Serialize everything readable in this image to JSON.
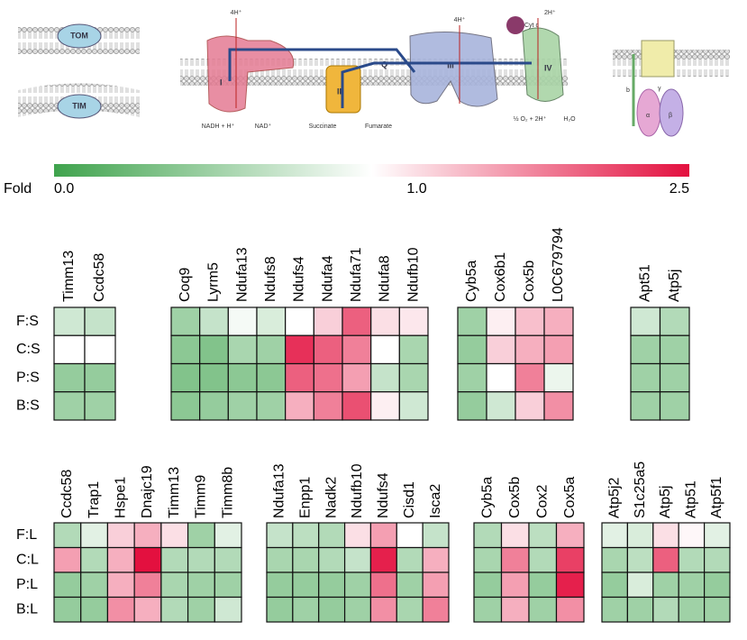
{
  "diagram": {
    "labels": [
      "TOM",
      "TIM",
      "I",
      "II",
      "Q",
      "III",
      "IV",
      "Cyt c",
      "NADH + H⁺",
      "NAD⁺",
      "Succinate",
      "Fumarate",
      "4H⁺",
      "4H⁺",
      "2H⁺",
      "½ O₂ + 2H⁺",
      "H₂O",
      "b",
      "α",
      "β",
      "γ"
    ]
  },
  "colorbar": {
    "label": "Fold",
    "ticks": [
      {
        "value": 0,
        "label": "0.0"
      },
      {
        "value": 1,
        "label": "1.0"
      },
      {
        "value": 2.5,
        "label": "2.5"
      }
    ],
    "colors": [
      "#3fa34d",
      "#ffffff",
      "#e3103f"
    ]
  },
  "chart_data": [
    {
      "type": "heatmap",
      "rows": [
        "F:S",
        "C:S",
        "P:S",
        "B:S"
      ],
      "groups": [
        {
          "columns": [
            "Timm13",
            "Ccdc58"
          ],
          "values": [
            [
              0.75,
              0.7
            ],
            [
              1.0,
              1.0
            ],
            [
              0.45,
              0.45
            ],
            [
              0.5,
              0.5
            ]
          ]
        },
        {
          "columns": [
            "Coq9",
            "Lyrm5",
            "Ndufa13",
            "Ndufs8",
            "Ndufs4",
            "Ndufa4",
            "Ndufa71",
            "Ndufa8",
            "Ndufb10"
          ],
          "values": [
            [
              0.5,
              0.7,
              0.95,
              0.8,
              1.0,
              1.3,
              2.0,
              1.2,
              1.15
            ],
            [
              0.4,
              0.35,
              0.55,
              0.5,
              2.3,
              2.0,
              1.8,
              1.0,
              0.55
            ],
            [
              0.35,
              0.35,
              0.4,
              0.4,
              2.0,
              1.9,
              1.6,
              0.7,
              0.55
            ],
            [
              0.4,
              0.45,
              0.5,
              0.5,
              1.5,
              1.8,
              2.1,
              1.1,
              0.75
            ]
          ]
        },
        {
          "columns": [
            "Cyb5a",
            "Cox6b1",
            "Cox5b",
            "L0C679794"
          ],
          "values": [
            [
              0.5,
              1.1,
              1.4,
              1.5
            ],
            [
              0.45,
              1.3,
              1.5,
              1.6
            ],
            [
              0.5,
              1.0,
              1.8,
              0.9
            ],
            [
              0.45,
              0.75,
              1.3,
              1.7
            ]
          ]
        },
        {
          "columns": [
            "Apt51",
            "Atp5j"
          ],
          "values": [
            [
              0.75,
              0.6
            ],
            [
              0.5,
              0.5
            ],
            [
              0.5,
              0.5
            ],
            [
              0.5,
              0.5
            ]
          ]
        }
      ]
    },
    {
      "type": "heatmap",
      "rows": [
        "F:L",
        "C:L",
        "P:L",
        "B:L"
      ],
      "groups": [
        {
          "columns": [
            "Ccdc58",
            "Trap1",
            "Hspe1",
            "Dnajc19",
            "Timm13",
            "Timm9",
            "Timm8b"
          ],
          "values": [
            [
              0.6,
              0.85,
              1.3,
              1.5,
              1.2,
              0.5,
              0.85
            ],
            [
              1.6,
              0.6,
              1.5,
              2.5,
              0.6,
              0.6,
              0.6
            ],
            [
              0.45,
              0.5,
              1.5,
              1.8,
              0.55,
              0.5,
              0.5
            ],
            [
              0.45,
              0.45,
              1.7,
              1.5,
              0.6,
              0.5,
              0.75
            ]
          ]
        },
        {
          "columns": [
            "Ndufa13",
            "Enpp1",
            "Nadk2",
            "Ndufb10",
            "Ndufs4",
            "Cisd1",
            "Isca2"
          ],
          "values": [
            [
              0.7,
              0.65,
              0.6,
              1.2,
              1.6,
              1.0,
              0.7
            ],
            [
              0.55,
              0.55,
              0.6,
              0.7,
              2.4,
              0.6,
              1.5
            ],
            [
              0.45,
              0.45,
              0.45,
              0.5,
              1.9,
              0.5,
              1.6
            ],
            [
              0.45,
              0.5,
              0.45,
              0.5,
              1.7,
              0.55,
              1.8
            ]
          ]
        },
        {
          "columns": [
            "Cyb5a",
            "Cox5b",
            "Cox2",
            "Cox5a"
          ],
          "values": [
            [
              0.6,
              1.2,
              0.65,
              1.5
            ],
            [
              0.55,
              1.8,
              0.6,
              2.2
            ],
            [
              0.45,
              1.6,
              0.45,
              2.4
            ],
            [
              0.5,
              1.5,
              0.5,
              1.7
            ]
          ]
        },
        {
          "columns": [
            "Atp5j2",
            "S1c25a5",
            "Atp5j",
            "Atp51",
            "Atp5f1"
          ],
          "values": [
            [
              0.85,
              0.8,
              1.2,
              1.05,
              0.85
            ],
            [
              0.55,
              0.65,
              2.0,
              0.6,
              0.6
            ],
            [
              0.45,
              0.8,
              0.5,
              0.5,
              0.45
            ],
            [
              0.5,
              0.5,
              0.6,
              0.5,
              0.5
            ]
          ]
        }
      ]
    }
  ]
}
